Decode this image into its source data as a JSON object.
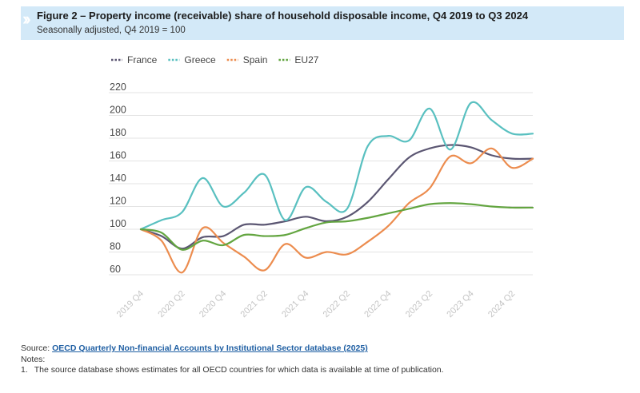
{
  "figure": {
    "title": "Figure 2 – Property income (receivable) share of household disposable income, Q4 2019 to Q3 2024",
    "subtitle": "Seasonally adjusted, Q4 2019 = 100",
    "icon": "double-chevron-right-icon"
  },
  "chart_data": {
    "type": "line",
    "x": [
      "2019 Q4",
      "2020 Q1",
      "2020 Q2",
      "2020 Q3",
      "2020 Q4",
      "2021 Q1",
      "2021 Q2",
      "2021 Q3",
      "2021 Q4",
      "2022 Q1",
      "2022 Q2",
      "2022 Q3",
      "2022 Q4",
      "2023 Q1",
      "2023 Q2",
      "2023 Q3",
      "2023 Q4",
      "2024 Q1",
      "2024 Q2",
      "2024 Q3"
    ],
    "x_tick_labels": [
      "2019 Q4",
      "2020 Q2",
      "2020 Q4",
      "2021 Q2",
      "2021 Q4",
      "2022 Q2",
      "2022 Q4",
      "2023 Q2",
      "2023 Q4",
      "2024 Q2"
    ],
    "series": [
      {
        "name": "France",
        "color": "#5b5672",
        "values": [
          100,
          94,
          83,
          93,
          94,
          104,
          104,
          107,
          111,
          107,
          111,
          124,
          144,
          163,
          171,
          174,
          172,
          165,
          162,
          162
        ]
      },
      {
        "name": "Greece",
        "color": "#59c0c0",
        "values": [
          100,
          108,
          115,
          145,
          120,
          132,
          148,
          108,
          137,
          124,
          118,
          173,
          182,
          178,
          206,
          170,
          211,
          196,
          184,
          184
        ]
      },
      {
        "name": "Spain",
        "color": "#ec8c4e",
        "values": [
          100,
          90,
          62,
          101,
          88,
          76,
          64,
          87,
          75,
          80,
          78,
          89,
          103,
          123,
          136,
          164,
          158,
          171,
          154,
          162
        ]
      },
      {
        "name": "EU27",
        "color": "#63a540",
        "values": [
          100,
          97,
          82,
          90,
          86,
          95,
          94,
          95,
          101,
          106,
          107,
          110,
          114,
          118,
          122,
          123,
          122,
          120,
          119,
          119
        ]
      }
    ],
    "yticks": [
      60,
      80,
      100,
      120,
      140,
      160,
      180,
      200,
      220
    ],
    "ylim": [
      60,
      220
    ],
    "grid": true,
    "legend_position": "top-left"
  },
  "colors": {
    "header_bg": "#d3e9f8",
    "grid": "#e3e3e3",
    "tick_label": "#4a4a4a",
    "x_tick_label": "#c4c4c4"
  },
  "footer": {
    "source_label": "Source:",
    "source_link": "OECD Quarterly Non-financial Accounts by Institutional Sector database (2025)",
    "notes_label": "Notes:",
    "notes": [
      {
        "number": "1.",
        "text": "The source database shows estimates for all OECD countries for which data is available at time of publication."
      }
    ]
  }
}
